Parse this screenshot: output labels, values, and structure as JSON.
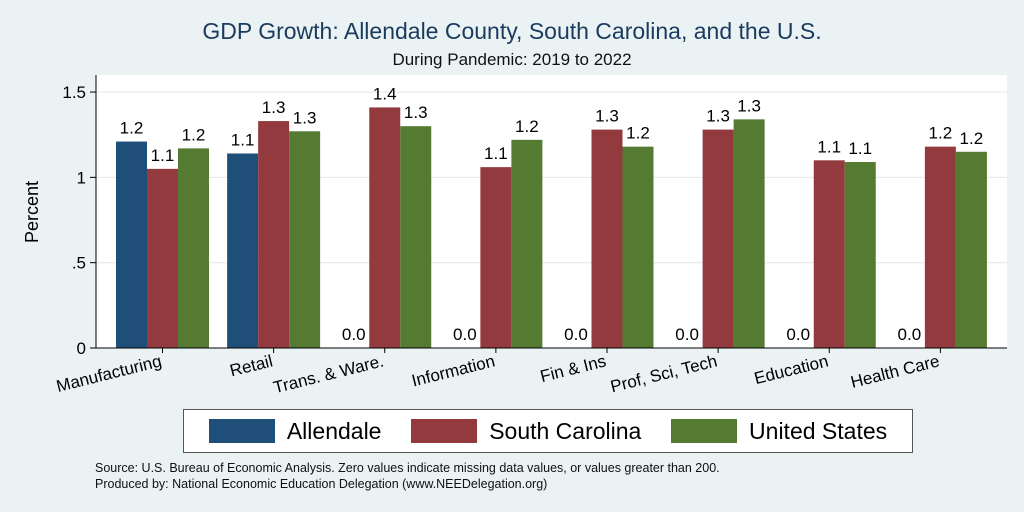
{
  "chart_data": {
    "type": "bar",
    "title": "GDP Growth: Allendale County, South Carolina, and the U.S.",
    "subtitle": "During Pandemic: 2019 to 2022",
    "ylabel": "Percent",
    "xlabel": "",
    "ylim": [
      0,
      1.6
    ],
    "yticks": [
      0,
      0.5,
      1,
      1.5
    ],
    "ytick_labels": [
      "0",
      ".5",
      "1",
      "1.5"
    ],
    "categories": [
      "Manufacturing",
      "Retail",
      "Trans. & Ware.",
      "Information",
      "Fin & Ins",
      "Prof, Sci, Tech",
      "Education",
      "Health Care"
    ],
    "series": [
      {
        "name": "Allendale",
        "color": "#1f4e79",
        "values": [
          1.21,
          1.14,
          0,
          0,
          0,
          0,
          0,
          0
        ],
        "labels": [
          "1.2",
          "1.1",
          "0.0",
          "0.0",
          "0.0",
          "0.0",
          "0.0",
          "0.0"
        ]
      },
      {
        "name": "South Carolina",
        "color": "#933a3f",
        "values": [
          1.05,
          1.33,
          1.41,
          1.06,
          1.28,
          1.28,
          1.1,
          1.18
        ],
        "labels": [
          "1.1",
          "1.3",
          "1.4",
          "1.1",
          "1.3",
          "1.3",
          "1.1",
          "1.2"
        ]
      },
      {
        "name": "United States",
        "color": "#557a32",
        "values": [
          1.17,
          1.27,
          1.3,
          1.22,
          1.18,
          1.34,
          1.09,
          1.15
        ],
        "labels": [
          "1.2",
          "1.3",
          "1.3",
          "1.2",
          "1.2",
          "1.3",
          "1.1",
          "1.2"
        ]
      }
    ],
    "legend_position": "bottom"
  },
  "footer": {
    "source": "Source: U.S. Bureau of Economic Analysis. Zero values indicate missing data values, or values greater than 200.",
    "produced_by": "Produced by: National Economic Education Delegation (www.NEEDelegation.org)"
  }
}
